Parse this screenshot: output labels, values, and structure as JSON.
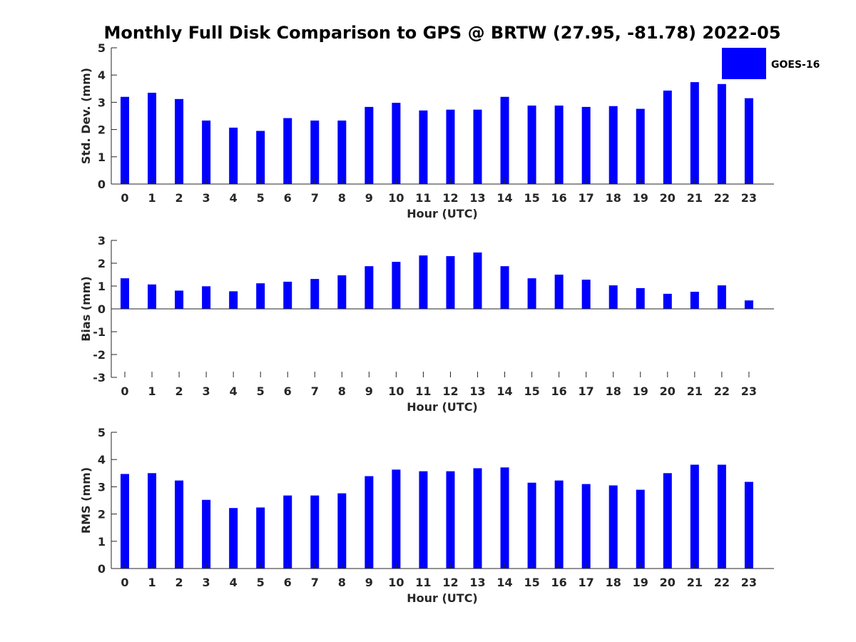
{
  "title": "Monthly Full Disk Comparison to GPS @ BRTW (27.95, -81.78) 2022-05",
  "colors": {
    "bar": "#0000ff",
    "axis": "#262626",
    "title": "#000000"
  },
  "legend": {
    "label": "GOES-16",
    "placement": "top-right"
  },
  "chart_data": [
    {
      "type": "bar",
      "categories": [
        "0",
        "1",
        "2",
        "3",
        "4",
        "5",
        "6",
        "7",
        "8",
        "9",
        "10",
        "11",
        "12",
        "13",
        "14",
        "15",
        "16",
        "17",
        "18",
        "19",
        "20",
        "21",
        "22",
        "23"
      ],
      "xlabel": "Hour (UTC)",
      "ylabel": "Std. Dev. (mm)",
      "ylim": [
        0,
        5
      ],
      "yticks": [
        "0",
        "1",
        "2",
        "3",
        "4",
        "5"
      ],
      "grid": false,
      "series": [
        {
          "name": "GOES-16",
          "values": [
            3.2,
            3.35,
            3.12,
            2.33,
            2.07,
            1.95,
            2.42,
            2.33,
            2.33,
            2.83,
            2.98,
            2.7,
            2.73,
            2.73,
            3.2,
            2.88,
            2.88,
            2.83,
            2.86,
            2.76,
            3.43,
            3.74,
            3.67,
            3.15
          ]
        }
      ]
    },
    {
      "type": "bar",
      "categories": [
        "0",
        "1",
        "2",
        "3",
        "4",
        "5",
        "6",
        "7",
        "8",
        "9",
        "10",
        "11",
        "12",
        "13",
        "14",
        "15",
        "16",
        "17",
        "18",
        "19",
        "20",
        "21",
        "22",
        "23"
      ],
      "xlabel": "Hour (UTC)",
      "ylabel": "Bias (mm)",
      "ylim": [
        -3,
        3
      ],
      "yticks": [
        "-3",
        "-2",
        "-1",
        "0",
        "1",
        "2",
        "3"
      ],
      "grid": false,
      "series": [
        {
          "name": "GOES-16",
          "values": [
            1.34,
            1.07,
            0.8,
            0.99,
            0.77,
            1.12,
            1.19,
            1.31,
            1.47,
            1.87,
            2.06,
            2.34,
            2.31,
            2.47,
            1.87,
            1.34,
            1.5,
            1.28,
            1.03,
            0.91,
            0.66,
            0.75,
            1.03,
            0.37
          ]
        }
      ]
    },
    {
      "type": "bar",
      "categories": [
        "0",
        "1",
        "2",
        "3",
        "4",
        "5",
        "6",
        "7",
        "8",
        "9",
        "10",
        "11",
        "12",
        "13",
        "14",
        "15",
        "16",
        "17",
        "18",
        "19",
        "20",
        "21",
        "22",
        "23"
      ],
      "xlabel": "Hour (UTC)",
      "ylabel": "RMS (mm)",
      "ylim": [
        0,
        5
      ],
      "yticks": [
        "0",
        "1",
        "2",
        "3",
        "4",
        "5"
      ],
      "grid": false,
      "series": [
        {
          "name": "GOES-16",
          "values": [
            3.47,
            3.5,
            3.23,
            2.52,
            2.22,
            2.24,
            2.68,
            2.68,
            2.76,
            3.39,
            3.63,
            3.57,
            3.57,
            3.68,
            3.71,
            3.15,
            3.23,
            3.1,
            3.05,
            2.89,
            3.5,
            3.81,
            3.81,
            3.18
          ]
        }
      ]
    }
  ]
}
